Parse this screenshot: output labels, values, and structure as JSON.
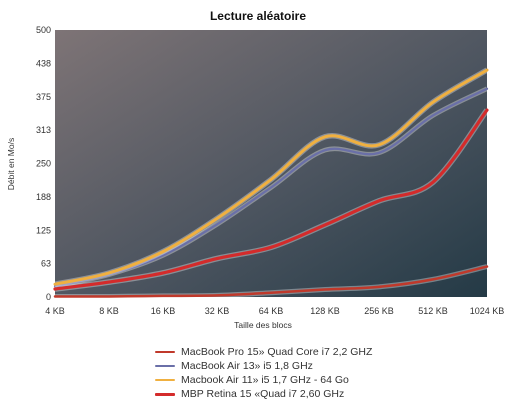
{
  "chart_data": {
    "type": "line",
    "title": "Lecture aléatoire",
    "xlabel": "Taille des blocs",
    "ylabel": "Débit en Mo/s",
    "categories": [
      "4 KB",
      "8 KB",
      "16 KB",
      "32 KB",
      "64 KB",
      "128 KB",
      "256 KB",
      "512 KB",
      "1024 KB"
    ],
    "yticks": [
      "0",
      "63",
      "125",
      "188",
      "250",
      "313",
      "375",
      "438",
      "500"
    ],
    "ylim": [
      0,
      500
    ],
    "grid": false,
    "legend_position": "bottom",
    "series": [
      {
        "name": "MacBook Pro 15» Quad Core i7 2,2 GHZ",
        "color": "#c0392b",
        "values": [
          1,
          1,
          2,
          3,
          8,
          14,
          19,
          33,
          57
        ]
      },
      {
        "name": "MacBook Air 13» i5 1,8 GHz",
        "color": "#6a6fa8",
        "values": [
          20,
          42,
          78,
          136,
          205,
          275,
          270,
          340,
          390
        ]
      },
      {
        "name": "Macbook Air 11» i5 1,7 GHz - 64 Go",
        "color": "#f0b040",
        "values": [
          24,
          45,
          85,
          147,
          220,
          300,
          285,
          365,
          425
        ]
      },
      {
        "name": "MBP Retina 15 «Quad i7 2,60 GHz",
        "color": "#d42b2b",
        "values": [
          15,
          28,
          45,
          72,
          93,
          135,
          180,
          215,
          350
        ]
      }
    ]
  }
}
